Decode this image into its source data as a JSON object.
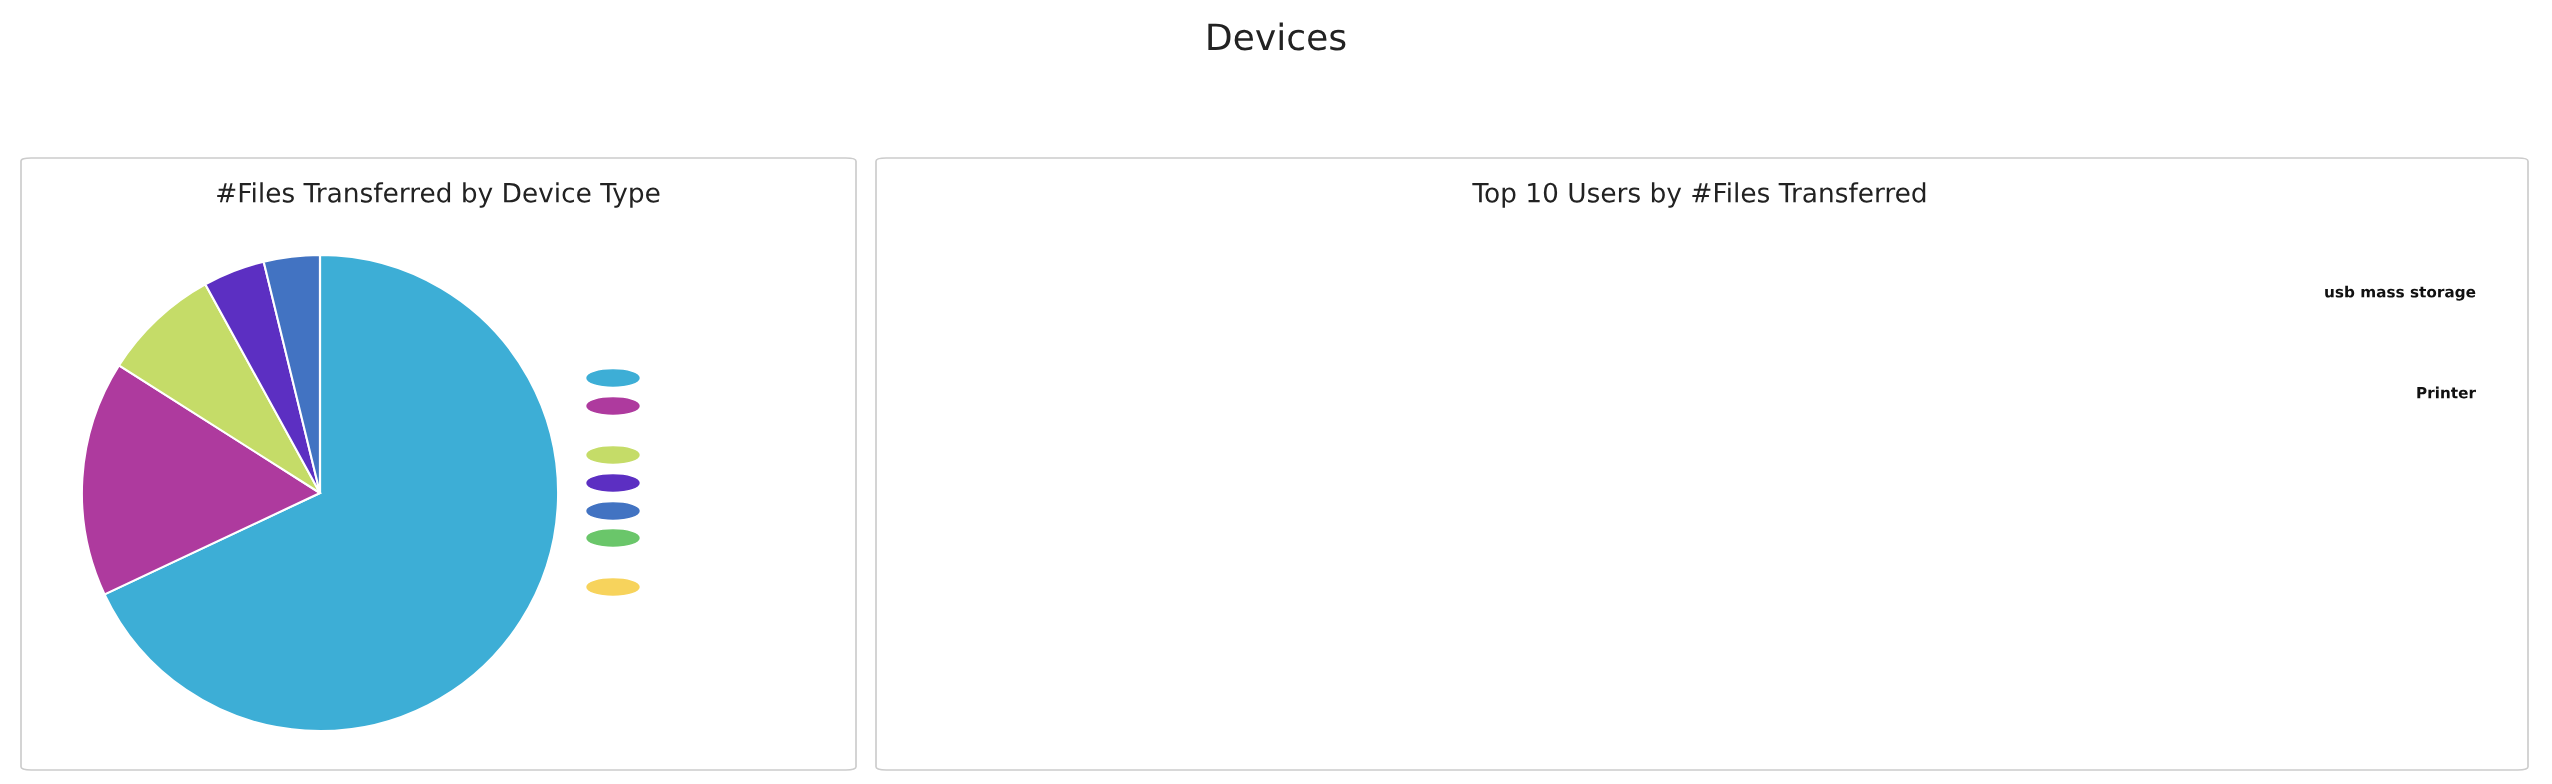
{
  "chart_data": [
    {
      "type": "other",
      "title": "Devices"
    },
    {
      "type": "pie",
      "title": "#Files Transferred by Device Type",
      "categories": [
        null,
        null,
        null,
        null,
        null,
        null,
        null
      ],
      "values": [
        68,
        16,
        8,
        4.2,
        3.8,
        0,
        0
      ],
      "colors": [
        "#3daed6",
        "#ae3a9e",
        "#c5dc68",
        "#5c2fc2",
        "#4273c2",
        "#6ac66a",
        "#f7d35c"
      ]
    },
    {
      "type": "other",
      "title": "Top 10 Users by #Files Transferred",
      "annotations": [
        "usb mass storage",
        "Printer"
      ]
    }
  ]
}
